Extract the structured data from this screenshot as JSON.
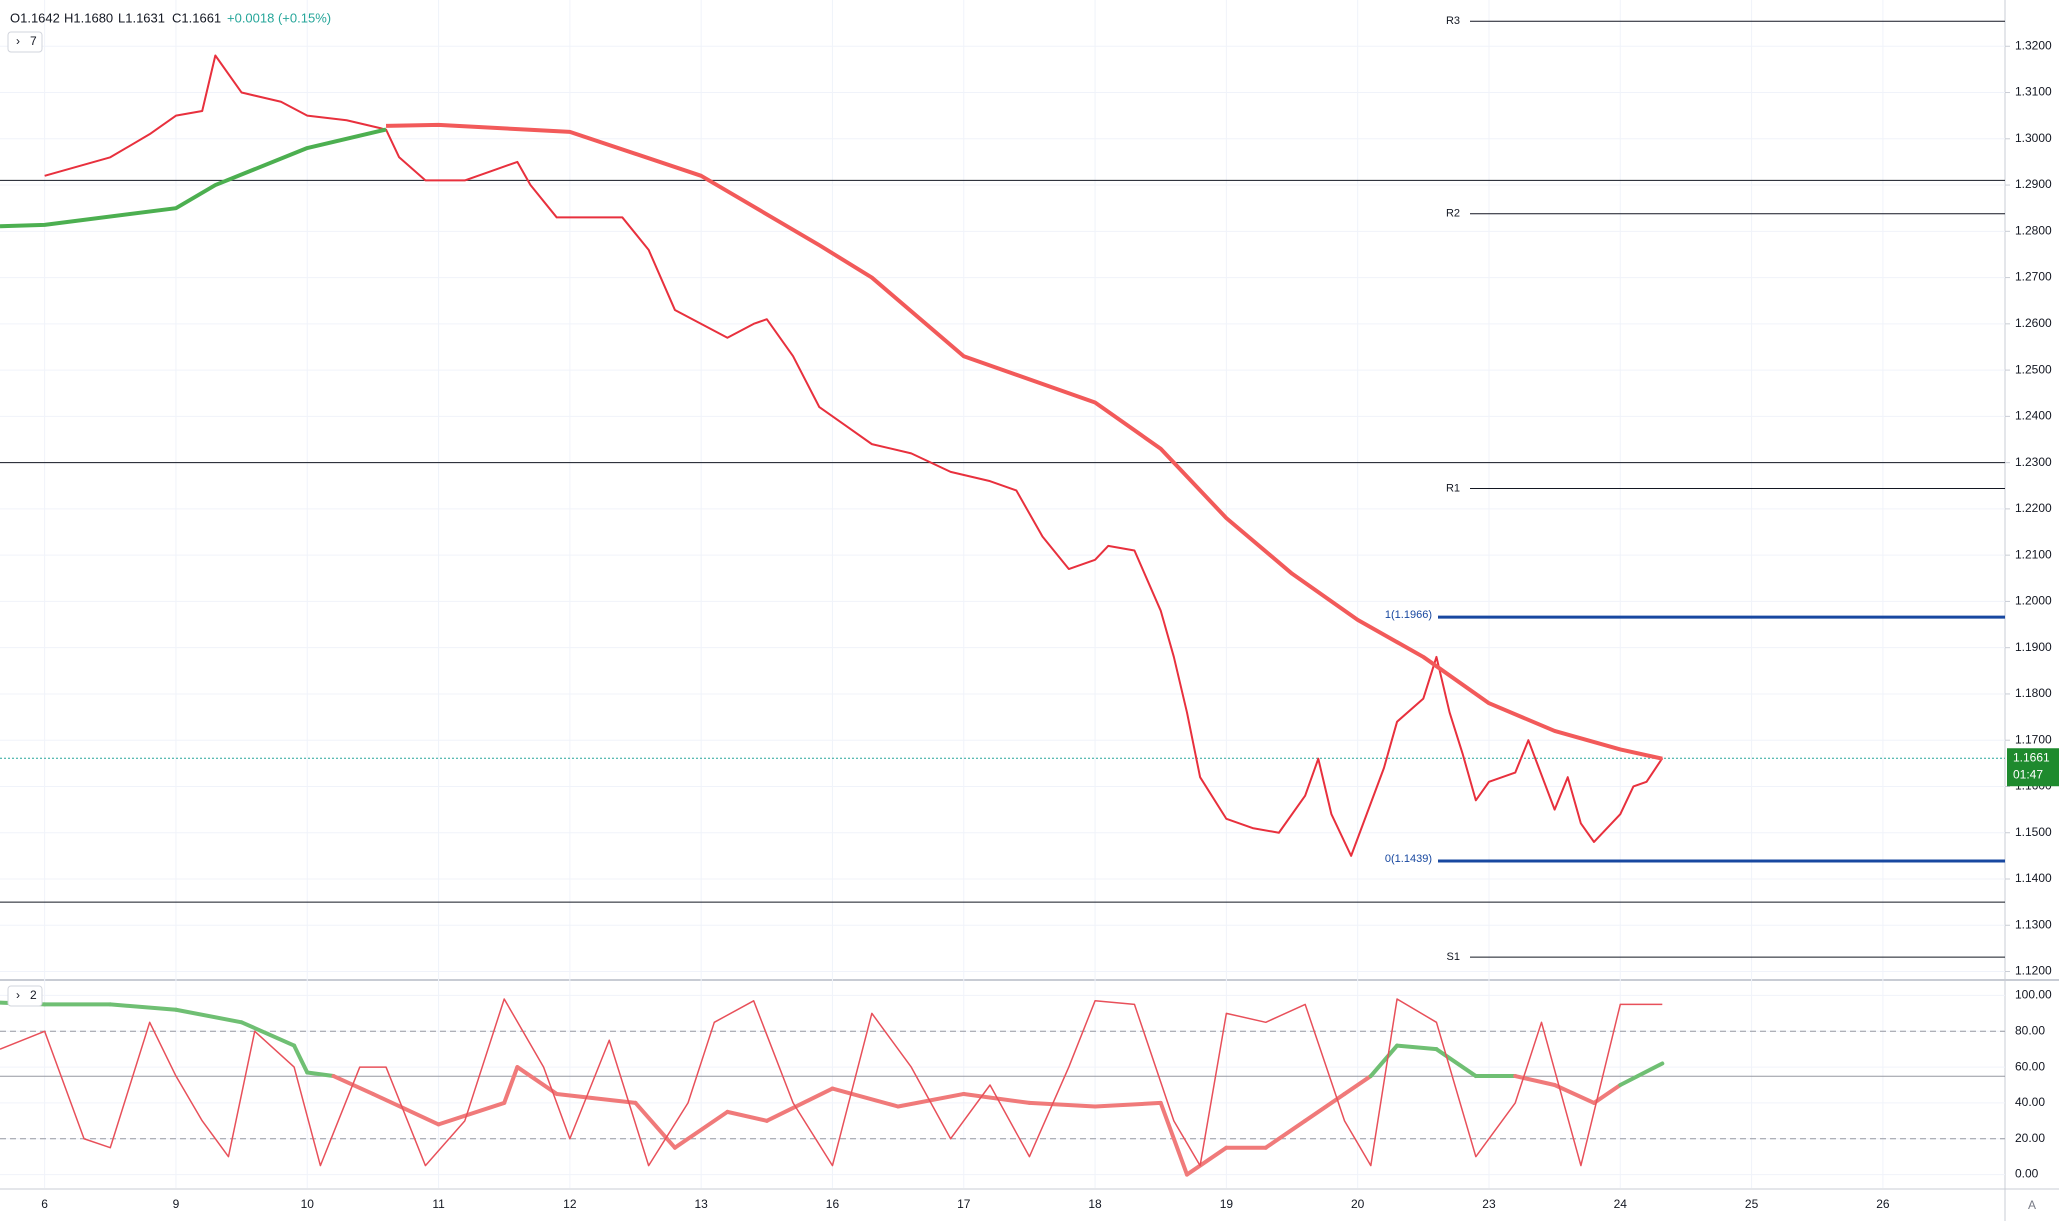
{
  "chart_data": {
    "type": "line",
    "header": {
      "open": "O1.1642",
      "high": "H1.1680",
      "low": "L1.1631",
      "close": "C1.1661",
      "change": "+0.0018 (+0.15%)"
    },
    "indicator_badges": [
      "7",
      "2"
    ],
    "xlim": [
      -0.34,
      14.93
    ],
    "xticks": [
      {
        "value": 0,
        "label": "6"
      },
      {
        "value": 1,
        "label": "9"
      },
      {
        "value": 2,
        "label": "10"
      },
      {
        "value": 3,
        "label": "11"
      },
      {
        "value": 4,
        "label": "12"
      },
      {
        "value": 5,
        "label": "13"
      },
      {
        "value": 6,
        "label": "16"
      },
      {
        "value": 7,
        "label": "17"
      },
      {
        "value": 8,
        "label": "18"
      },
      {
        "value": 9,
        "label": "19"
      },
      {
        "value": 10,
        "label": "20"
      },
      {
        "value": 11,
        "label": "23"
      },
      {
        "value": 12,
        "label": "24"
      },
      {
        "value": 13,
        "label": "25"
      },
      {
        "value": 14,
        "label": "26"
      }
    ],
    "ylim": [
      1.1186,
      1.33
    ],
    "yticks": [
      {
        "value": 1.12,
        "label": "1.1200"
      },
      {
        "value": 1.13,
        "label": "1.1300"
      },
      {
        "value": 1.14,
        "label": "1.1400"
      },
      {
        "value": 1.15,
        "label": "1.1500"
      },
      {
        "value": 1.16,
        "label": "1.1600"
      },
      {
        "value": 1.17,
        "label": "1.1700"
      },
      {
        "value": 1.18,
        "label": "1.1800"
      },
      {
        "value": 1.19,
        "label": "1.1900"
      },
      {
        "value": 1.2,
        "label": "1.2000"
      },
      {
        "value": 1.21,
        "label": "1.2100"
      },
      {
        "value": 1.22,
        "label": "1.2200"
      },
      {
        "value": 1.23,
        "label": "1.2300"
      },
      {
        "value": 1.24,
        "label": "1.2400"
      },
      {
        "value": 1.25,
        "label": "1.2500"
      },
      {
        "value": 1.26,
        "label": "1.2600"
      },
      {
        "value": 1.27,
        "label": "1.2700"
      },
      {
        "value": 1.28,
        "label": "1.2800"
      },
      {
        "value": 1.29,
        "label": "1.2900"
      },
      {
        "value": 1.3,
        "label": "1.3000"
      },
      {
        "value": 1.31,
        "label": "1.3100"
      },
      {
        "value": 1.32,
        "label": "1.3200"
      }
    ],
    "grid": true,
    "series": [
      {
        "color": "#e8303d",
        "width": 2,
        "x": [
          0,
          0.5,
          0.8,
          1.0,
          1.2,
          1.3,
          1.5,
          1.8,
          2.0,
          2.3,
          2.6,
          2.7,
          2.9,
          3.2,
          3.4,
          3.6,
          3.7,
          3.9,
          4.2,
          4.4,
          4.6,
          4.8,
          5.0,
          5.2,
          5.4,
          5.5,
          5.7,
          5.9,
          6.1,
          6.3,
          6.6,
          6.9,
          7.2,
          7.4,
          7.6,
          7.8,
          8.0,
          8.1,
          8.3,
          8.5,
          8.6,
          8.7,
          8.8,
          9.0,
          9.2,
          9.4,
          9.6,
          9.7,
          9.8,
          9.95,
          10.2,
          10.3,
          10.5,
          10.6,
          10.7,
          10.8,
          10.9,
          11.0,
          11.2,
          11.3,
          11.5,
          11.6,
          11.7,
          11.8,
          12.0,
          12.1,
          12.2,
          12.32
        ],
        "values": [
          1.292,
          1.296,
          1.301,
          1.305,
          1.306,
          1.318,
          1.31,
          1.308,
          1.305,
          1.304,
          1.302,
          1.296,
          1.291,
          1.291,
          1.293,
          1.295,
          1.29,
          1.283,
          1.283,
          1.283,
          1.276,
          1.263,
          1.26,
          1.257,
          1.26,
          1.261,
          1.253,
          1.242,
          1.238,
          1.234,
          1.232,
          1.228,
          1.226,
          1.224,
          1.214,
          1.207,
          1.209,
          1.212,
          1.211,
          1.198,
          1.188,
          1.176,
          1.162,
          1.153,
          1.151,
          1.15,
          1.158,
          1.166,
          1.154,
          1.145,
          1.164,
          1.174,
          1.179,
          1.188,
          1.176,
          1.167,
          1.157,
          1.161,
          1.163,
          1.17,
          1.155,
          1.162,
          1.152,
          1.148,
          1.154,
          1.16,
          1.161,
          1.1661
        ]
      },
      {
        "color": "#f25a5a",
        "width": 4,
        "x": [
          2.6,
          3.0,
          4.0,
          5.0,
          5.9,
          6.3,
          7.0,
          8.0,
          8.5,
          9.0,
          9.5,
          10.0,
          10.5,
          11.0,
          11.5,
          12.0,
          12.32
        ],
        "values": [
          1.3028,
          1.303,
          1.3015,
          1.292,
          1.277,
          1.27,
          1.253,
          1.243,
          1.233,
          1.218,
          1.206,
          1.196,
          1.188,
          1.178,
          1.172,
          1.168,
          1.166
        ]
      },
      {
        "color": "#4caf50",
        "width": 4,
        "x": [
          -0.34,
          0,
          1.0,
          1.3,
          2.0,
          2.6
        ],
        "values": [
          1.2811,
          1.2814,
          1.285,
          1.29,
          1.298,
          1.302
        ]
      }
    ],
    "levels": [
      {
        "label": "R3",
        "value": 1.3254
      },
      {
        "label": "R2",
        "value": 1.2838
      },
      {
        "label": "R1",
        "value": 1.2244
      },
      {
        "label": "S1",
        "value": 1.1231
      },
      {
        "value": 1.291
      },
      {
        "value": 1.23
      },
      {
        "value": 1.135
      }
    ],
    "fib_levels": [
      {
        "label": "1(1.1966)",
        "value": 1.1966
      },
      {
        "label": "0(1.1439)",
        "value": 1.1439
      }
    ],
    "last_price": {
      "value": 1.1661,
      "label": "1.1661"
    },
    "countdown": "01:47",
    "oscillator": {
      "ylim": [
        -7.5,
        107.5
      ],
      "yticks": [
        {
          "value": 0,
          "label": "0.00"
        },
        {
          "value": 20,
          "label": "20.00"
        },
        {
          "value": 40,
          "label": "40.00"
        },
        {
          "value": 60,
          "label": "60.00"
        },
        {
          "value": 80,
          "label": "80.00"
        },
        {
          "value": 100,
          "label": "100.00"
        }
      ],
      "dashed": [
        20,
        80
      ],
      "midline": 54.9,
      "up_color": "#6fbf73",
      "down_color": "#f07a7a",
      "series": [
        {
          "color": "#f07a7a",
          "width": 4,
          "x": [
            -0.34,
            0,
            0.5,
            1,
            1.5,
            1.9,
            2.0,
            2.2,
            2.5,
            3,
            3.5,
            3.6,
            3.9,
            4.5,
            4.8,
            5.2,
            5.5,
            6.0,
            6.5,
            7.0,
            7.5,
            8.0,
            8.5,
            8.7,
            9.0,
            9.3,
            9.6,
            9.9,
            10.1,
            10.3,
            10.6,
            10.9,
            11.2,
            11.5,
            11.8,
            12.0,
            12.32
          ],
          "values": [
            96,
            95,
            95,
            92,
            85,
            72,
            57,
            55,
            45,
            28,
            40,
            60,
            45,
            40,
            15,
            35,
            30,
            48,
            38,
            45,
            40,
            38,
            40,
            0,
            15,
            15,
            30,
            45,
            55,
            72,
            70,
            55,
            55,
            50,
            40,
            50,
            62
          ]
        },
        {
          "color": "#e8505a",
          "width": 1.5,
          "x": [
            -0.34,
            0,
            0.3,
            0.5,
            0.8,
            1.0,
            1.2,
            1.4,
            1.6,
            1.9,
            2.1,
            2.4,
            2.6,
            2.9,
            3.2,
            3.5,
            3.8,
            4.0,
            4.3,
            4.6,
            4.9,
            5.1,
            5.4,
            5.7,
            6.0,
            6.3,
            6.6,
            6.9,
            7.2,
            7.5,
            7.8,
            8.0,
            8.3,
            8.6,
            8.8,
            9.0,
            9.3,
            9.6,
            9.9,
            10.1,
            10.3,
            10.6,
            10.9,
            11.2,
            11.4,
            11.7,
            12.0,
            12.32
          ],
          "values": [
            70,
            80,
            20,
            15,
            85,
            55,
            30,
            10,
            80,
            60,
            5,
            60,
            60,
            5,
            30,
            98,
            60,
            20,
            75,
            5,
            40,
            85,
            97,
            40,
            5,
            90,
            60,
            20,
            50,
            10,
            60,
            97,
            95,
            30,
            5,
            90,
            85,
            95,
            30,
            5,
            98,
            85,
            10,
            40,
            85,
            5,
            95,
            95
          ]
        }
      ]
    },
    "auto_label": "A"
  }
}
